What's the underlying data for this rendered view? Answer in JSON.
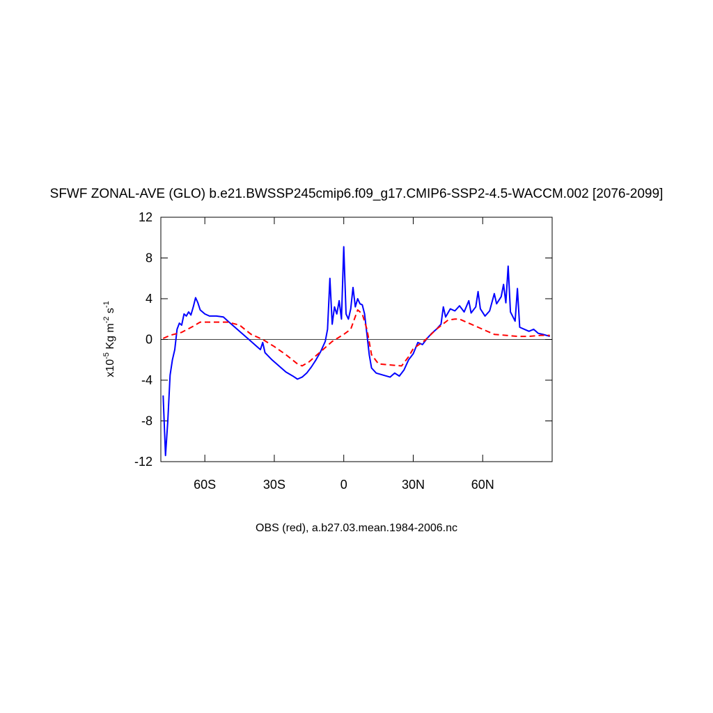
{
  "chart_data": {
    "type": "line",
    "title": "SFWF ZONAL-AVE (GLO) b.e21.BWSSP245cmip6.f09_g17.CMIP6-SSP2-4.5-WACCM.002 [2076-2099]",
    "ylabel_parts": [
      "x10",
      "-5",
      " Kg m",
      "-2",
      " s",
      "-1"
    ],
    "xlabel": "OBS (red), a.b27.03.mean.1984-2006.nc",
    "xlim": [
      -79,
      90
    ],
    "ylim": [
      -12,
      12
    ],
    "xticks": [
      {
        "value": -60,
        "label": "60S"
      },
      {
        "value": -30,
        "label": "30S"
      },
      0,
      {
        "value": 30,
        "label": "30N"
      },
      {
        "value": 60,
        "label": "60N"
      }
    ],
    "yticks": [
      -12,
      -8,
      -4,
      0,
      4,
      8,
      12
    ],
    "zero_line": true,
    "series": [
      {
        "color": "#0000ff",
        "dashed": false,
        "x": [
          -78,
          -77,
          -76,
          -75,
          -74,
          -73,
          -72,
          -71,
          -70,
          -69,
          -68,
          -67,
          -66,
          -65,
          -64,
          -63,
          -62,
          -60,
          -58,
          -55,
          -52,
          -50,
          -47,
          -44,
          -41,
          -38,
          -36,
          -35,
          -34,
          -31,
          -28,
          -25,
          -22,
          -20,
          -18,
          -16,
          -14,
          -12,
          -10,
          -8,
          -7,
          -6,
          -5,
          -4,
          -3,
          -2,
          -1,
          0,
          1,
          2,
          3,
          4,
          5,
          6,
          7,
          8,
          9,
          10,
          11,
          12,
          14,
          17,
          20,
          22,
          24,
          26,
          28,
          30,
          32,
          34,
          36,
          38,
          40,
          42,
          43,
          44,
          46,
          48,
          50,
          52,
          54,
          55,
          57,
          58,
          59,
          61,
          63,
          65,
          66,
          68,
          69,
          70,
          71,
          72,
          74,
          75,
          76,
          78,
          80,
          82,
          84,
          86,
          89
        ],
        "values": [
          -5.5,
          -11.4,
          -8,
          -3.5,
          -2,
          -1,
          1,
          1.6,
          1.4,
          2.5,
          2.3,
          2.7,
          2.4,
          3.2,
          4.1,
          3.6,
          2.9,
          2.5,
          2.3,
          2.3,
          2.2,
          1.8,
          1.2,
          0.6,
          0,
          -0.6,
          -1,
          -0.3,
          -1.3,
          -2,
          -2.6,
          -3.2,
          -3.6,
          -3.9,
          -3.7,
          -3.3,
          -2.7,
          -2,
          -1.2,
          -0.2,
          1,
          6,
          1.5,
          3.2,
          2.5,
          3.8,
          2,
          9.1,
          2.5,
          2,
          3,
          5.1,
          3.2,
          4,
          3.5,
          3.4,
          2.5,
          0.5,
          -1.5,
          -2.8,
          -3.3,
          -3.5,
          -3.7,
          -3.3,
          -3.6,
          -3,
          -2,
          -1.4,
          -0.3,
          -0.5,
          0.1,
          0.6,
          1,
          1.5,
          3.2,
          2.2,
          3,
          2.8,
          3.3,
          2.7,
          3.8,
          2.6,
          3.2,
          4.7,
          3,
          2.3,
          2.8,
          4.5,
          3.5,
          4.2,
          5.4,
          3.6,
          7.2,
          2.7,
          1.8,
          5,
          1.2,
          1,
          0.8,
          1,
          0.6,
          0.5,
          0.3
        ]
      },
      {
        "color": "#ff0000",
        "dashed": true,
        "x": [
          -78,
          -75,
          -70,
          -65,
          -62,
          -55,
          -50,
          -45,
          -40,
          -35,
          -30,
          -25,
          -20,
          -18,
          -15,
          -10,
          -5,
          0,
          3,
          6,
          8,
          10,
          12,
          15,
          20,
          25,
          28,
          30,
          35,
          40,
          45,
          48,
          50,
          55,
          60,
          65,
          70,
          75,
          80,
          85,
          89
        ],
        "values": [
          0.1,
          0.4,
          0.7,
          1.3,
          1.7,
          1.7,
          1.7,
          1.4,
          0.5,
          0,
          -0.7,
          -1.5,
          -2.4,
          -2.6,
          -2.2,
          -1.2,
          -0.2,
          0.5,
          1,
          2.9,
          2.5,
          1,
          -1.5,
          -2.4,
          -2.5,
          -2.6,
          -1.7,
          -0.9,
          -0.1,
          1,
          1.9,
          2,
          2,
          1.5,
          1,
          0.5,
          0.4,
          0.3,
          0.3,
          0.4,
          0.4
        ]
      }
    ]
  }
}
